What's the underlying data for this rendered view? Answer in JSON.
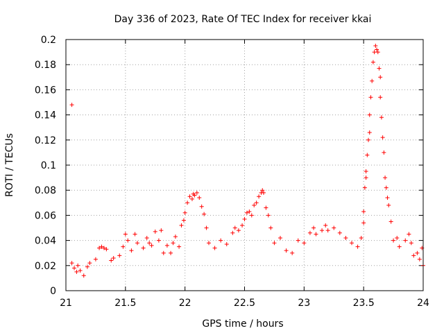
{
  "chart_data": {
    "type": "scatter",
    "title": "Day 336 of 2023, Rate Of TEC Index for receiver kkai",
    "xlabel": "GPS time / hours",
    "ylabel": "ROTI / TECUs",
    "xlim": [
      21,
      24
    ],
    "ylim": [
      0,
      0.2
    ],
    "x_ticks": [
      21,
      21.5,
      22,
      22.5,
      23,
      23.5,
      24
    ],
    "x_tick_labels": [
      "21",
      "21.5",
      "22",
      "22.5",
      "23",
      "23.5",
      "24"
    ],
    "y_ticks": [
      0,
      0.02,
      0.04,
      0.06,
      0.08,
      0.1,
      0.12,
      0.14,
      0.16,
      0.18,
      0.2
    ],
    "y_tick_labels": [
      "0",
      "0.02",
      "0.04",
      "0.06",
      "0.08",
      "0.1",
      "0.12",
      "0.14",
      "0.16",
      "0.18",
      "0.2"
    ],
    "grid": true,
    "marker": "+",
    "color": "#ff0000",
    "series": [
      {
        "name": "ROTI",
        "points": [
          [
            21.05,
            0.148
          ],
          [
            21.05,
            0.022
          ],
          [
            21.07,
            0.018
          ],
          [
            21.09,
            0.015
          ],
          [
            21.1,
            0.02
          ],
          [
            21.12,
            0.016
          ],
          [
            21.15,
            0.012
          ],
          [
            21.18,
            0.019
          ],
          [
            21.2,
            0.022
          ],
          [
            21.25,
            0.025
          ],
          [
            21.28,
            0.034
          ],
          [
            21.3,
            0.035
          ],
          [
            21.32,
            0.034
          ],
          [
            21.34,
            0.033
          ],
          [
            21.38,
            0.024
          ],
          [
            21.4,
            0.026
          ],
          [
            21.45,
            0.028
          ],
          [
            21.48,
            0.035
          ],
          [
            21.5,
            0.045
          ],
          [
            21.52,
            0.04
          ],
          [
            21.55,
            0.032
          ],
          [
            21.58,
            0.045
          ],
          [
            21.6,
            0.038
          ],
          [
            21.65,
            0.034
          ],
          [
            21.68,
            0.042
          ],
          [
            21.7,
            0.038
          ],
          [
            21.72,
            0.036
          ],
          [
            21.75,
            0.047
          ],
          [
            21.78,
            0.04
          ],
          [
            21.8,
            0.048
          ],
          [
            21.82,
            0.03
          ],
          [
            21.85,
            0.036
          ],
          [
            21.88,
            0.03
          ],
          [
            21.9,
            0.038
          ],
          [
            21.92,
            0.043
          ],
          [
            21.95,
            0.035
          ],
          [
            21.97,
            0.052
          ],
          [
            21.99,
            0.056
          ],
          [
            22.0,
            0.062
          ],
          [
            22.02,
            0.07
          ],
          [
            22.04,
            0.075
          ],
          [
            22.06,
            0.073
          ],
          [
            22.07,
            0.077
          ],
          [
            22.08,
            0.076
          ],
          [
            22.1,
            0.078
          ],
          [
            22.12,
            0.074
          ],
          [
            22.14,
            0.067
          ],
          [
            22.16,
            0.061
          ],
          [
            22.18,
            0.05
          ],
          [
            22.2,
            0.038
          ],
          [
            22.25,
            0.034
          ],
          [
            22.3,
            0.04
          ],
          [
            22.35,
            0.037
          ],
          [
            22.4,
            0.046
          ],
          [
            22.42,
            0.05
          ],
          [
            22.45,
            0.048
          ],
          [
            22.48,
            0.052
          ],
          [
            22.5,
            0.057
          ],
          [
            22.52,
            0.062
          ],
          [
            22.54,
            0.063
          ],
          [
            22.56,
            0.06
          ],
          [
            22.58,
            0.068
          ],
          [
            22.6,
            0.07
          ],
          [
            22.62,
            0.075
          ],
          [
            22.64,
            0.078
          ],
          [
            22.65,
            0.08
          ],
          [
            22.66,
            0.078
          ],
          [
            22.68,
            0.066
          ],
          [
            22.7,
            0.06
          ],
          [
            22.72,
            0.05
          ],
          [
            22.75,
            0.038
          ],
          [
            22.8,
            0.042
          ],
          [
            22.85,
            0.032
          ],
          [
            22.9,
            0.03
          ],
          [
            22.95,
            0.04
          ],
          [
            23.0,
            0.038
          ],
          [
            23.05,
            0.046
          ],
          [
            23.08,
            0.05
          ],
          [
            23.1,
            0.045
          ],
          [
            23.15,
            0.048
          ],
          [
            23.18,
            0.052
          ],
          [
            23.2,
            0.048
          ],
          [
            23.25,
            0.05
          ],
          [
            23.3,
            0.046
          ],
          [
            23.35,
            0.042
          ],
          [
            23.4,
            0.038
          ],
          [
            23.45,
            0.035
          ],
          [
            23.48,
            0.042
          ],
          [
            23.5,
            0.054
          ],
          [
            23.5,
            0.063
          ],
          [
            23.51,
            0.082
          ],
          [
            23.52,
            0.09
          ],
          [
            23.52,
            0.095
          ],
          [
            23.53,
            0.108
          ],
          [
            23.54,
            0.12
          ],
          [
            23.55,
            0.126
          ],
          [
            23.55,
            0.14
          ],
          [
            23.56,
            0.154
          ],
          [
            23.57,
            0.167
          ],
          [
            23.58,
            0.182
          ],
          [
            23.59,
            0.19
          ],
          [
            23.6,
            0.195
          ],
          [
            23.61,
            0.192
          ],
          [
            23.62,
            0.19
          ],
          [
            23.63,
            0.177
          ],
          [
            23.64,
            0.17
          ],
          [
            23.64,
            0.154
          ],
          [
            23.65,
            0.138
          ],
          [
            23.66,
            0.122
          ],
          [
            23.67,
            0.11
          ],
          [
            23.68,
            0.09
          ],
          [
            23.69,
            0.082
          ],
          [
            23.7,
            0.074
          ],
          [
            23.71,
            0.068
          ],
          [
            23.73,
            0.055
          ],
          [
            23.75,
            0.04
          ],
          [
            23.78,
            0.042
          ],
          [
            23.8,
            0.035
          ],
          [
            23.85,
            0.04
          ],
          [
            23.88,
            0.045
          ],
          [
            23.9,
            0.038
          ],
          [
            23.92,
            0.028
          ],
          [
            23.95,
            0.03
          ],
          [
            23.97,
            0.025
          ],
          [
            23.99,
            0.034
          ],
          [
            24.0,
            0.02
          ]
        ]
      }
    ]
  }
}
